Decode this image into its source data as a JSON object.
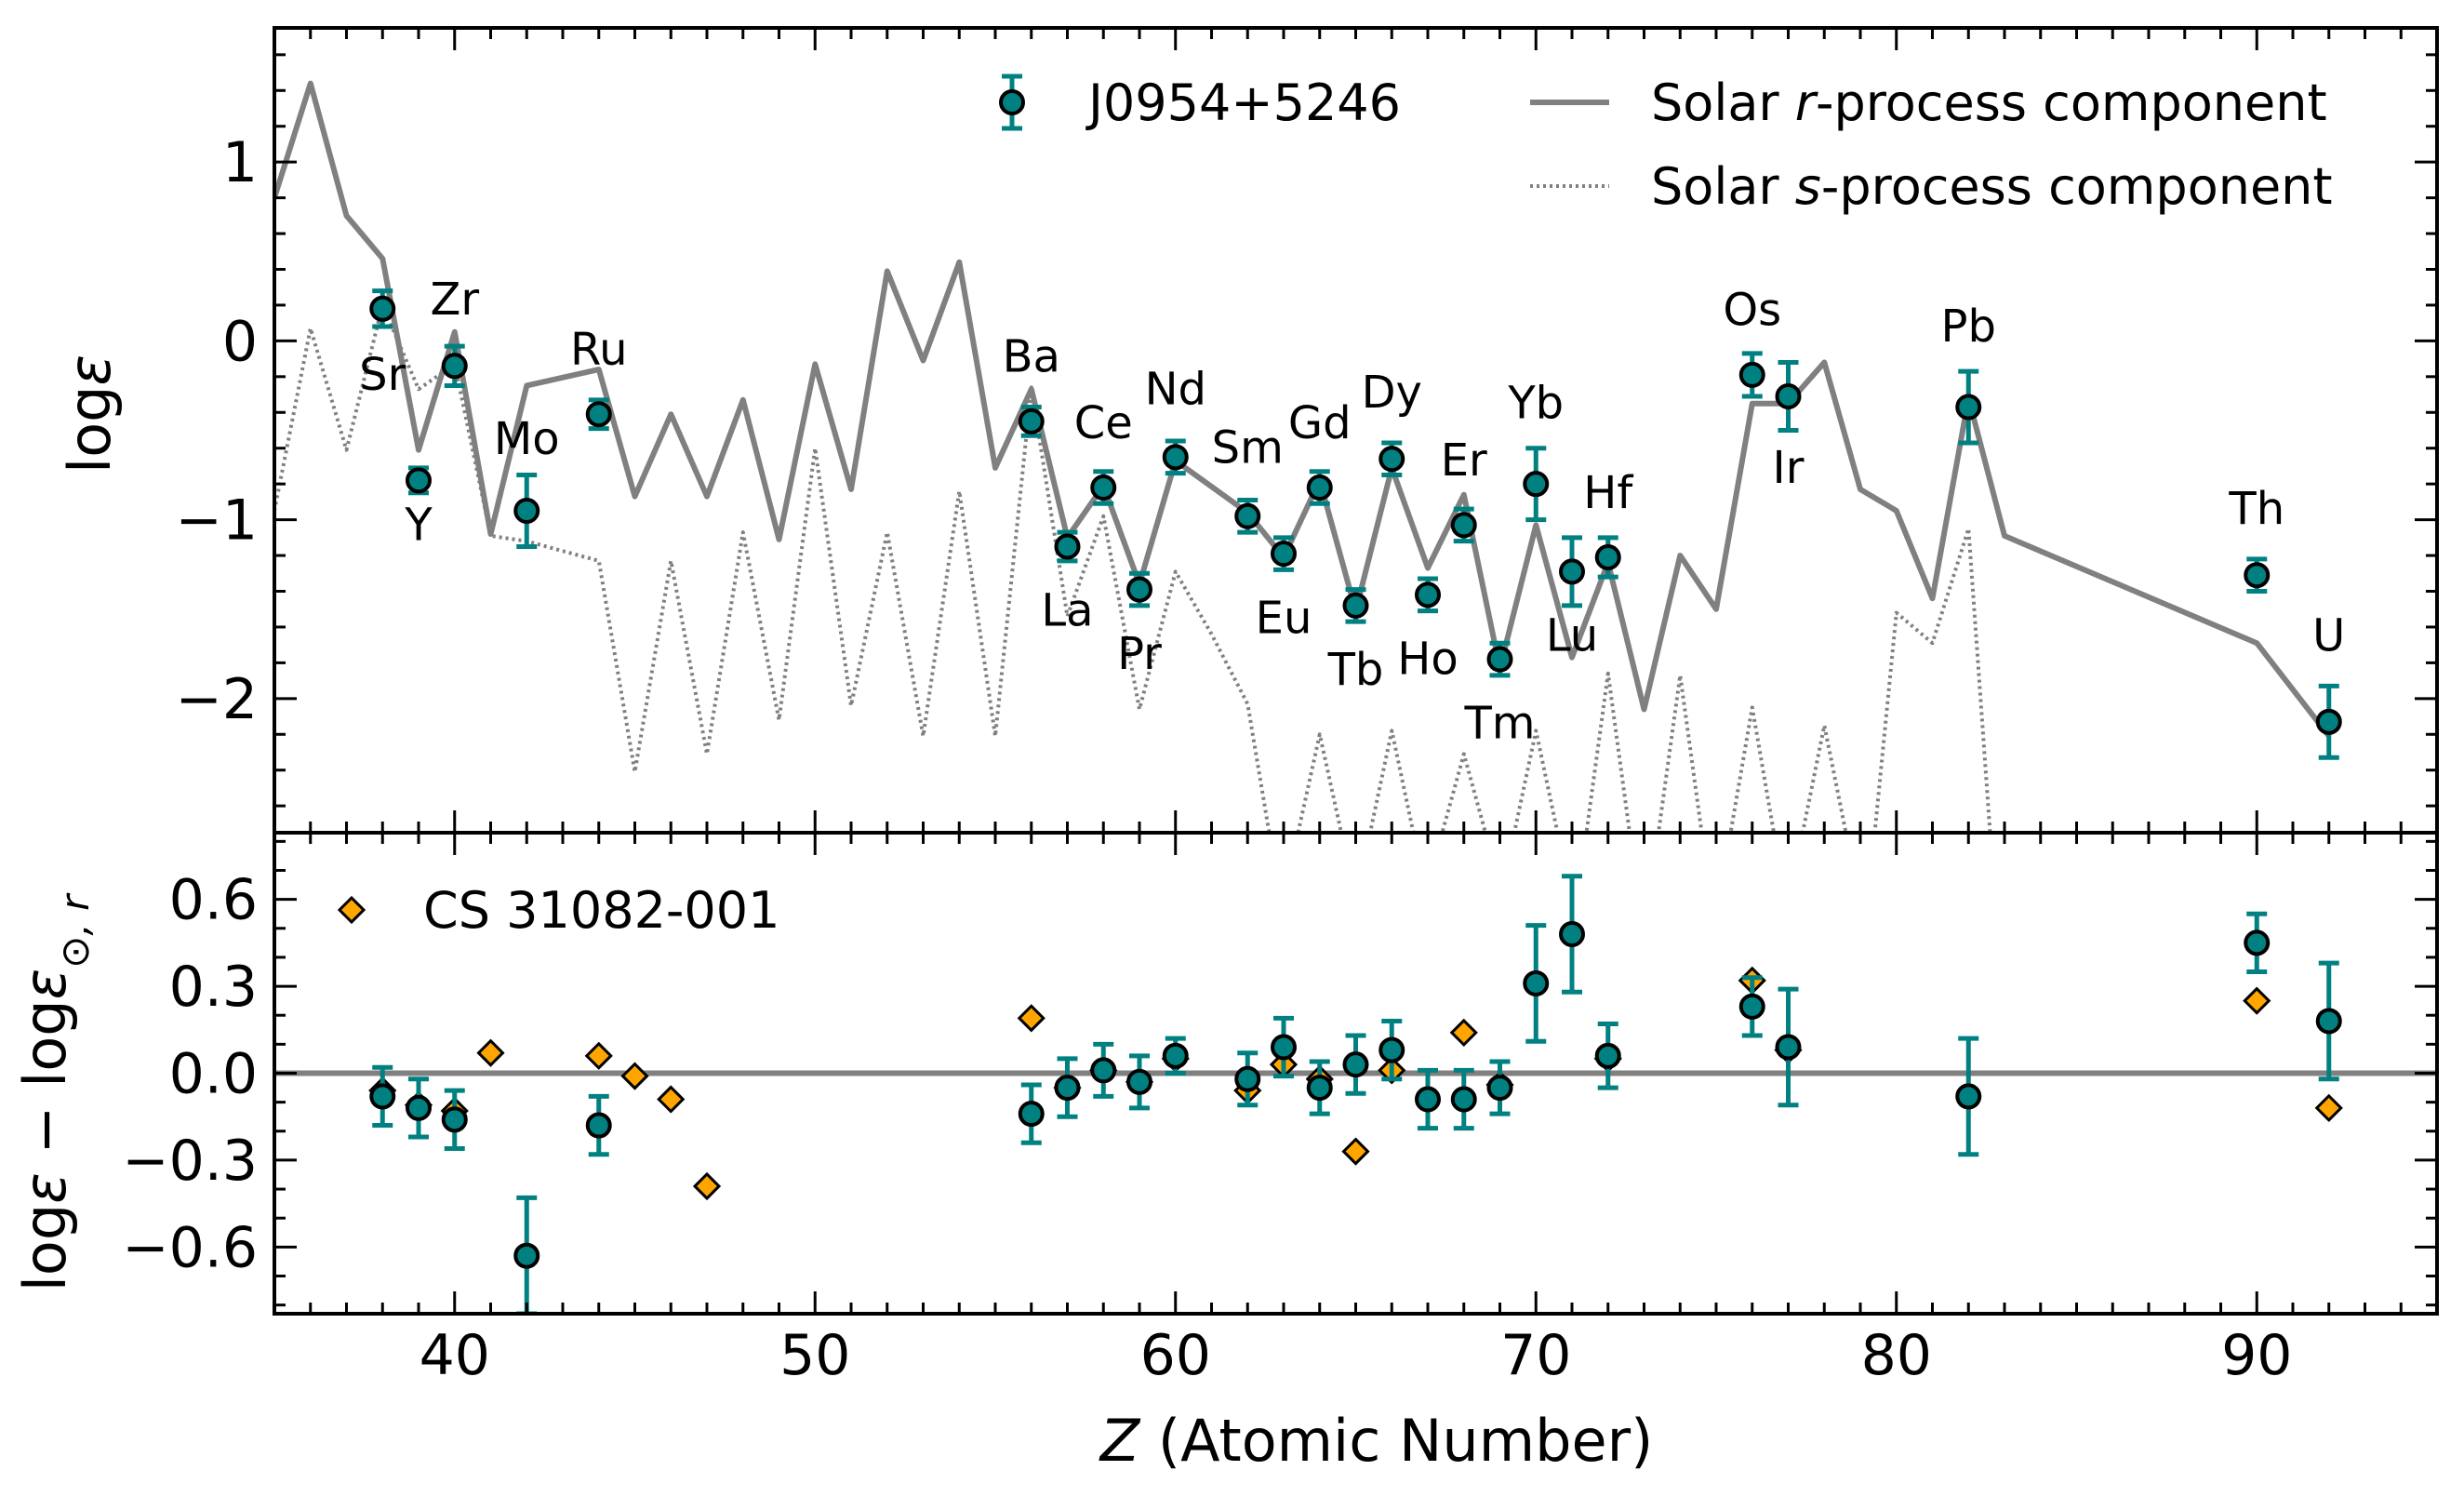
{
  "figure": {
    "xlabel_italic": "Z",
    "xlabel_rest": " (Atomic Number)",
    "xlim": [
      35,
      95
    ],
    "x_ticks": [
      40,
      50,
      60,
      70,
      80,
      90
    ],
    "x_tick_labels": [
      "40",
      "50",
      "60",
      "70",
      "80",
      "90"
    ]
  },
  "chart_data": [
    {
      "type": "line",
      "ylabel": "logε",
      "ylim": [
        -2.75,
        1.75
      ],
      "y_ticks": [
        1,
        0,
        -1,
        -2
      ],
      "y_tick_labels": [
        "1",
        "0",
        "−1",
        "−2"
      ],
      "legend_position": "top-right",
      "legend": [
        {
          "label": "J0954+5246",
          "kind": "marker"
        },
        {
          "label_parts": [
            "Solar ",
            "r",
            "-process component"
          ],
          "kind": "solid"
        },
        {
          "label_parts": [
            "Solar ",
            "s",
            "-process component"
          ],
          "kind": "dotted"
        }
      ],
      "series": [
        {
          "name": "Solar r-process component",
          "style": "solid",
          "color": "#808080",
          "points": [
            [
              35,
              0.8
            ],
            [
              36,
              1.44
            ],
            [
              37,
              0.7
            ],
            [
              38,
              0.46
            ],
            [
              39,
              -0.61
            ],
            [
              40,
              0.05
            ],
            [
              41,
              -1.08
            ],
            [
              42,
              -0.25
            ],
            [
              44,
              -0.16
            ],
            [
              45,
              -0.87
            ],
            [
              46,
              -0.41
            ],
            [
              47,
              -0.87
            ],
            [
              48,
              -0.33
            ],
            [
              49,
              -1.11
            ],
            [
              50,
              -0.13
            ],
            [
              51,
              -0.83
            ],
            [
              52,
              0.39
            ],
            [
              53,
              -0.11
            ],
            [
              54,
              0.44
            ],
            [
              55,
              -0.71
            ],
            [
              56,
              -0.27
            ],
            [
              57,
              -1.1
            ],
            [
              58,
              -0.81
            ],
            [
              59,
              -1.36
            ],
            [
              60,
              -0.67
            ],
            [
              62,
              -0.96
            ],
            [
              63,
              -1.21
            ],
            [
              64,
              -0.78
            ],
            [
              65,
              -1.51
            ],
            [
              66,
              -0.71
            ],
            [
              67,
              -1.27
            ],
            [
              68,
              -0.86
            ],
            [
              69,
              -1.83
            ],
            [
              70,
              -1.03
            ],
            [
              71,
              -1.77
            ],
            [
              72,
              -1.24
            ],
            [
              73,
              -2.06
            ],
            [
              74,
              -1.2
            ],
            [
              75,
              -1.5
            ],
            [
              76,
              -0.35
            ],
            [
              77,
              -0.35
            ],
            [
              78,
              -0.12
            ],
            [
              79,
              -0.83
            ],
            [
              80,
              -0.95
            ],
            [
              81,
              -1.44
            ],
            [
              82,
              -0.32
            ],
            [
              83,
              -1.09
            ],
            [
              90,
              -1.69
            ],
            [
              92,
              -2.21
            ]
          ]
        },
        {
          "name": "Solar s-process component",
          "style": "dotted",
          "color": "#808080",
          "points": [
            [
              35,
              -0.95
            ],
            [
              36,
              0.07
            ],
            [
              37,
              -0.61
            ],
            [
              38,
              0.2
            ],
            [
              39,
              -0.27
            ],
            [
              40,
              -0.13
            ],
            [
              41,
              -1.09
            ],
            [
              42,
              -1.12
            ],
            [
              44,
              -1.23
            ],
            [
              45,
              -2.41
            ],
            [
              46,
              -1.23
            ],
            [
              47,
              -2.31
            ],
            [
              48,
              -1.07
            ],
            [
              49,
              -2.12
            ],
            [
              50,
              -0.6
            ],
            [
              51,
              -2.04
            ],
            [
              52,
              -1.07
            ],
            [
              53,
              -2.21
            ],
            [
              54,
              -0.84
            ],
            [
              55,
              -2.21
            ],
            [
              56,
              -0.26
            ],
            [
              57,
              -1.54
            ],
            [
              58,
              -0.98
            ],
            [
              59,
              -2.06
            ],
            [
              60,
              -1.29
            ],
            [
              61,
              -1.64
            ],
            [
              62,
              -2.03
            ],
            [
              62.6,
              -2.75
            ],
            [
              63.4,
              -2.75
            ],
            [
              64,
              -2.2
            ],
            [
              64.6,
              -2.75
            ],
            [
              65.4,
              -2.75
            ],
            [
              66,
              -2.18
            ],
            [
              66.6,
              -2.75
            ],
            [
              67.4,
              -2.75
            ],
            [
              68,
              -2.31
            ],
            [
              68.6,
              -2.75
            ],
            [
              69.4,
              -2.75
            ],
            [
              70,
              -2.18
            ],
            [
              70.6,
              -2.75
            ],
            [
              71.4,
              -2.75
            ],
            [
              72,
              -1.86
            ],
            [
              72.6,
              -2.75
            ],
            [
              73.4,
              -2.75
            ],
            [
              74,
              -1.87
            ],
            [
              74.6,
              -2.75
            ],
            [
              75.4,
              -2.75
            ],
            [
              76,
              -2.05
            ],
            [
              76.6,
              -2.75
            ],
            [
              77.4,
              -2.75
            ],
            [
              78,
              -2.15
            ],
            [
              78.6,
              -2.75
            ],
            [
              79.4,
              -2.75
            ],
            [
              80,
              -1.52
            ],
            [
              81,
              -1.69
            ],
            [
              82,
              -1.05
            ],
            [
              82.6,
              -2.75
            ],
            [
              83.4,
              -2.75
            ]
          ]
        }
      ],
      "stars": [
        {
          "name": "J0954+5246",
          "color": "#008080",
          "points": [
            {
              "z": 38,
              "y": 0.18,
              "err": 0.1,
              "label": "Sr",
              "dx": 0,
              "dy": -0.37
            },
            {
              "z": 39,
              "y": -0.78,
              "err": 0.07,
              "label": "Y",
              "dx": 0,
              "dy": -0.25
            },
            {
              "z": 40,
              "y": -0.14,
              "err": 0.11,
              "label": "Zr",
              "dx": 0,
              "dy": 0.37
            },
            {
              "z": 42,
              "y": -0.95,
              "err": 0.2,
              "label": "Mo",
              "dx": 0,
              "dy": 0.4
            },
            {
              "z": 44,
              "y": -0.41,
              "err": 0.08,
              "label": "Ru",
              "dx": 0,
              "dy": 0.36
            },
            {
              "z": 56,
              "y": -0.45,
              "err": 0.08,
              "label": "Ba",
              "dx": 0,
              "dy": 0.36
            },
            {
              "z": 57,
              "y": -1.15,
              "err": 0.08,
              "label": "La",
              "dx": 0,
              "dy": -0.36
            },
            {
              "z": 58,
              "y": -0.82,
              "err": 0.09,
              "label": "Ce",
              "dx": 0,
              "dy": 0.36
            },
            {
              "z": 59,
              "y": -1.39,
              "err": 0.09,
              "label": "Pr",
              "dx": 0,
              "dy": -0.36
            },
            {
              "z": 60,
              "y": -0.65,
              "err": 0.09,
              "label": "Nd",
              "dx": 0,
              "dy": 0.38
            },
            {
              "z": 62,
              "y": -0.98,
              "err": 0.09,
              "label": "Sm",
              "dx": 0,
              "dy": 0.38
            },
            {
              "z": 63,
              "y": -1.19,
              "err": 0.09,
              "label": "Eu",
              "dx": 0,
              "dy": -0.36
            },
            {
              "z": 64,
              "y": -0.82,
              "err": 0.09,
              "label": "Gd",
              "dx": 0,
              "dy": 0.36
            },
            {
              "z": 65,
              "y": -1.48,
              "err": 0.09,
              "label": "Tb",
              "dx": 0,
              "dy": -0.36
            },
            {
              "z": 66,
              "y": -0.66,
              "err": 0.09,
              "label": "Dy",
              "dx": 0,
              "dy": 0.37
            },
            {
              "z": 67,
              "y": -1.42,
              "err": 0.09,
              "label": "Ho",
              "dx": 0,
              "dy": -0.36
            },
            {
              "z": 68,
              "y": -1.03,
              "err": 0.09,
              "label": "Er",
              "dx": 0,
              "dy": 0.36
            },
            {
              "z": 69,
              "y": -1.78,
              "err": 0.09,
              "label": "Tm",
              "dx": 0,
              "dy": -0.36
            },
            {
              "z": 70,
              "y": -0.8,
              "err": 0.2,
              "label": "Yb",
              "dx": 0,
              "dy": 0.45
            },
            {
              "z": 71,
              "y": -1.29,
              "err": 0.19,
              "label": "Lu",
              "dx": 0,
              "dy": -0.36
            },
            {
              "z": 72,
              "y": -1.21,
              "err": 0.11,
              "label": "Hf",
              "dx": 0,
              "dy": 0.36
            },
            {
              "z": 76,
              "y": -0.19,
              "err": 0.12,
              "label": "Os",
              "dx": 0,
              "dy": 0.36
            },
            {
              "z": 77,
              "y": -0.31,
              "err": 0.19,
              "label": "Ir",
              "dx": 0,
              "dy": -0.4
            },
            {
              "z": 82,
              "y": -0.37,
              "err": 0.2,
              "label": "Pb",
              "dx": 0,
              "dy": 0.45
            },
            {
              "z": 90,
              "y": -1.31,
              "err": 0.09,
              "label": "Th",
              "dx": 0,
              "dy": 0.37
            },
            {
              "z": 92,
              "y": -2.13,
              "err": 0.2,
              "label": "U",
              "dx": 0,
              "dy": 0.48
            }
          ]
        }
      ]
    },
    {
      "type": "scatter",
      "ylabel_main": "logε − logε",
      "ylabel_sub": "⊙, r",
      "ylim": [
        -0.83,
        0.83
      ],
      "y_ticks": [
        0.6,
        0.3,
        0.0,
        -0.3,
        -0.6
      ],
      "y_tick_labels": [
        "0.6",
        "0.3",
        "0.0",
        "−0.3",
        "−0.6"
      ],
      "reference_line": 0.0,
      "legend_position": "top-left",
      "legend": [
        {
          "label": "CS 31082-001",
          "kind": "diamond"
        }
      ],
      "series": [
        {
          "name": "CS 31082-001",
          "color": "#FFA500",
          "marker": "diamond",
          "points": [
            [
              38,
              -0.06
            ],
            [
              39,
              -0.11
            ],
            [
              40,
              -0.13
            ],
            [
              41,
              0.07
            ],
            [
              44,
              0.06
            ],
            [
              45,
              -0.01
            ],
            [
              46,
              -0.09
            ],
            [
              47,
              -0.39
            ],
            [
              56,
              0.19
            ],
            [
              57,
              -0.05
            ],
            [
              58,
              0.01
            ],
            [
              59,
              -0.03
            ],
            [
              60,
              0.05
            ],
            [
              62,
              -0.06
            ],
            [
              63,
              0.03
            ],
            [
              64,
              -0.02
            ],
            [
              65,
              -0.27
            ],
            [
              66,
              0.01
            ],
            [
              68,
              0.14
            ],
            [
              69,
              -0.04
            ],
            [
              72,
              0.05
            ],
            [
              76,
              0.32
            ],
            [
              77,
              0.08
            ],
            [
              90,
              0.25
            ],
            [
              92,
              -0.12
            ]
          ]
        },
        {
          "name": "J0954+5246",
          "color": "#008080",
          "marker": "circle",
          "points": [
            [
              38,
              -0.08,
              0.1
            ],
            [
              39,
              -0.12,
              0.1
            ],
            [
              40,
              -0.16,
              0.1
            ],
            [
              42,
              -0.63,
              0.2
            ],
            [
              44,
              -0.18,
              0.1
            ],
            [
              56,
              -0.14,
              0.1
            ],
            [
              57,
              -0.05,
              0.1
            ],
            [
              58,
              0.01,
              0.09
            ],
            [
              59,
              -0.03,
              0.09
            ],
            [
              60,
              0.06,
              0.06
            ],
            [
              62,
              -0.02,
              0.09
            ],
            [
              63,
              0.09,
              0.1
            ],
            [
              64,
              -0.05,
              0.09
            ],
            [
              65,
              0.03,
              0.1
            ],
            [
              66,
              0.08,
              0.1
            ],
            [
              67,
              -0.09,
              0.1
            ],
            [
              68,
              -0.09,
              0.1
            ],
            [
              69,
              -0.05,
              0.09
            ],
            [
              70,
              0.31,
              0.2
            ],
            [
              71,
              0.48,
              0.2
            ],
            [
              72,
              0.06,
              0.11
            ],
            [
              76,
              0.23,
              0.1
            ],
            [
              77,
              0.09,
              0.2
            ],
            [
              82,
              -0.08,
              0.2
            ],
            [
              90,
              0.45,
              0.1
            ],
            [
              92,
              0.18,
              0.2
            ]
          ]
        }
      ]
    }
  ]
}
